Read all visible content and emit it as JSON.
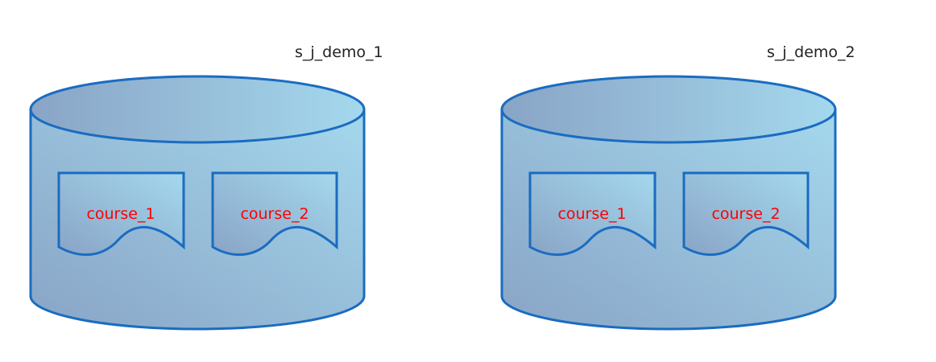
{
  "colors": {
    "stroke": "#1a6cc0",
    "cylinder_light": "#a4d8ed",
    "cylinder_dark": "#89a4c6",
    "table_text": "#ff0000",
    "label_text": "#222222"
  },
  "databases": [
    {
      "name": "s_j_demo_1",
      "tables": [
        {
          "name": "course_1"
        },
        {
          "name": "course_2"
        }
      ]
    },
    {
      "name": "s_j_demo_2",
      "tables": [
        {
          "name": "course_1"
        },
        {
          "name": "course_2"
        }
      ]
    }
  ]
}
